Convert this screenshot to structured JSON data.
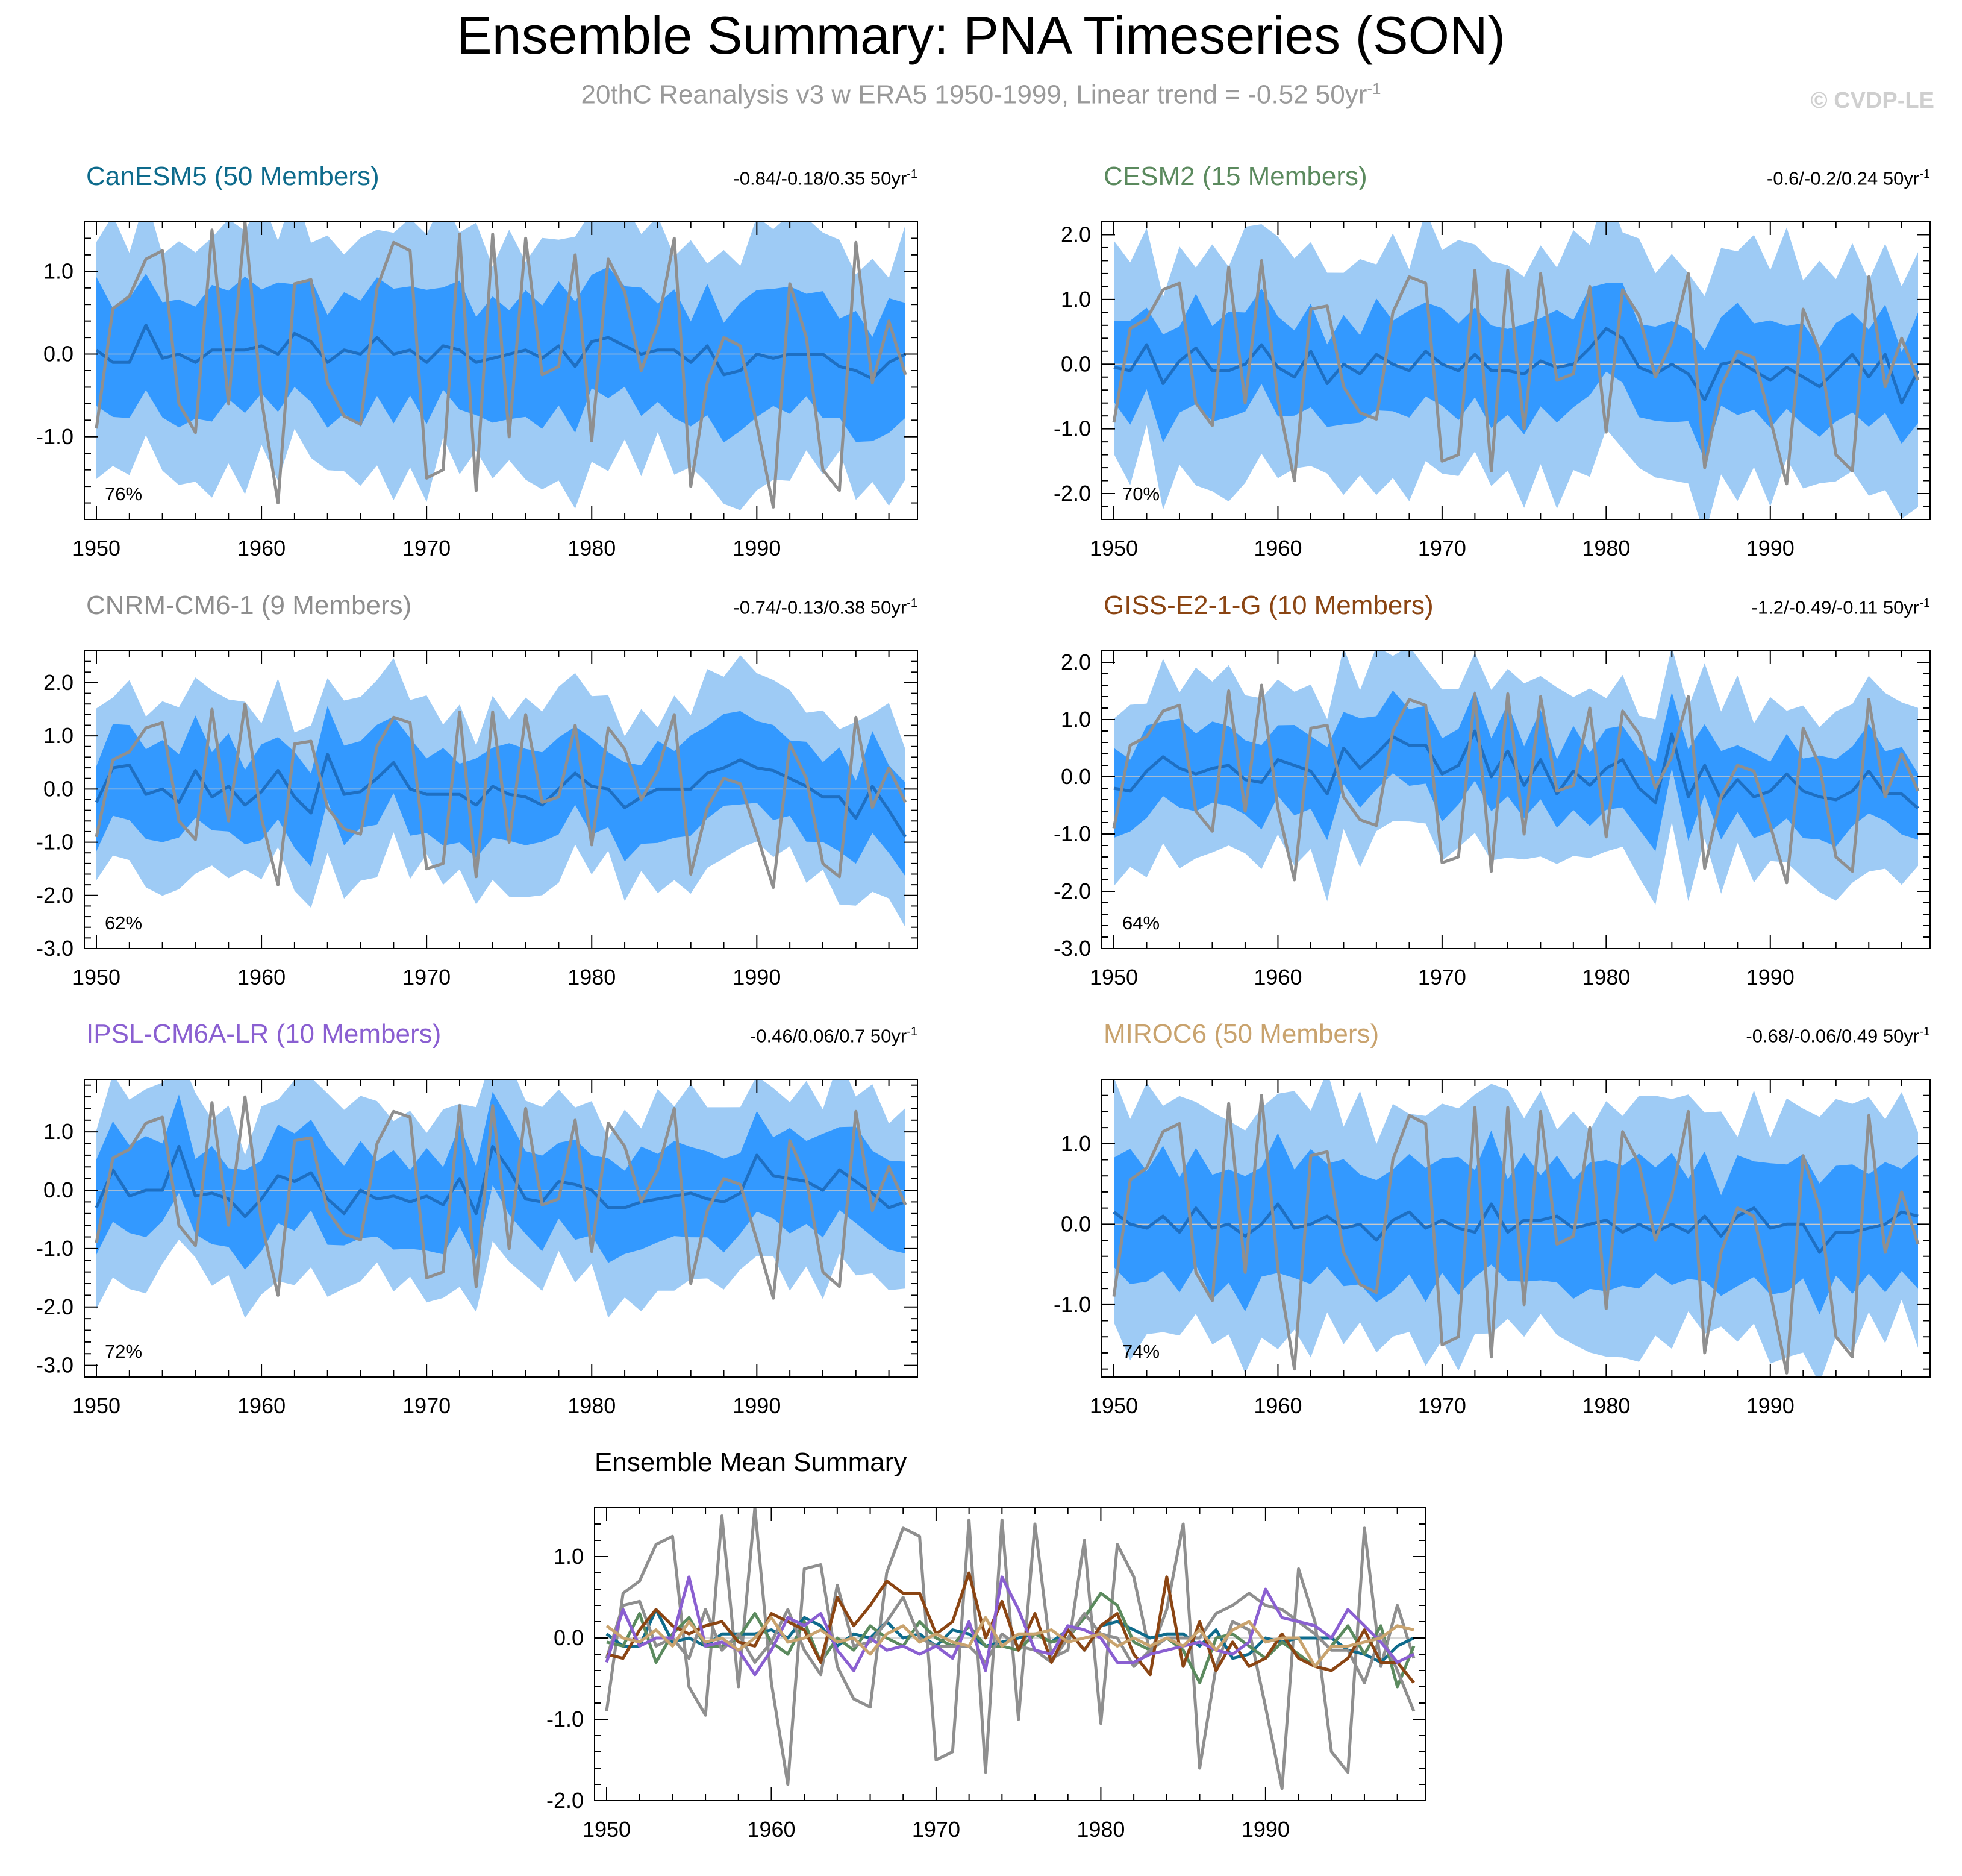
{
  "header": {
    "title": "Ensemble Summary: PNA Timeseries (SON)",
    "subtitle": "20thC Reanalysis v3 w ERA5 1950-1999, Linear trend = -0.52 50yr",
    "subtitle_unit_exp": "-1",
    "credit": "© CVDP-LE"
  },
  "colors": {
    "outer_band": "#9ecbf5",
    "inner_band": "#3399ff",
    "ens_mean": "#1e6fc2",
    "observed": "#8f8f8f",
    "zero_line": "#c8c8c8"
  },
  "chart_data": {
    "type": "line",
    "x": [
      1950,
      1951,
      1952,
      1953,
      1954,
      1955,
      1956,
      1957,
      1958,
      1959,
      1960,
      1961,
      1962,
      1963,
      1964,
      1965,
      1966,
      1967,
      1968,
      1969,
      1970,
      1971,
      1972,
      1973,
      1974,
      1975,
      1976,
      1977,
      1978,
      1979,
      1980,
      1981,
      1982,
      1983,
      1984,
      1985,
      1986,
      1987,
      1988,
      1989,
      1990,
      1991,
      1992,
      1993,
      1994,
      1995,
      1996,
      1997,
      1998,
      1999
    ],
    "xticks": [
      "1950",
      "1960",
      "1970",
      "1980",
      "1990"
    ],
    "observed_name": "20thC Reanalysis v3 w ERA5",
    "observed": [
      -0.9,
      0.55,
      0.7,
      1.15,
      1.25,
      -0.6,
      -0.95,
      1.5,
      -0.6,
      1.6,
      -0.55,
      -1.8,
      0.85,
      0.9,
      -0.35,
      -0.75,
      -0.85,
      0.8,
      1.35,
      1.25,
      -1.5,
      -1.4,
      1.45,
      -1.65,
      1.45,
      -1.0,
      1.4,
      -0.25,
      -0.15,
      1.2,
      -1.05,
      1.15,
      0.75,
      -0.2,
      0.35,
      1.4,
      -1.6,
      -0.35,
      0.2,
      0.1,
      -0.85,
      -1.85,
      0.85,
      0.2,
      -1.4,
      -1.65,
      1.35,
      -0.35,
      0.4,
      -0.25
    ],
    "panels": [
      {
        "name": "CanESM5 (50 Members)",
        "color": "#0e6b8c",
        "trend": "-0.84/-0.18/0.35 50yr",
        "trend_exp": "-1",
        "percent": "76%",
        "ylim": [
          -2.0,
          1.6
        ],
        "yticks": [
          "1.0",
          "0.0",
          "-1.0"
        ],
        "ytick_values": [
          1.0,
          0.0,
          -1.0
        ],
        "mean": [
          0.05,
          -0.1,
          -0.1,
          0.35,
          -0.05,
          0.0,
          -0.1,
          0.05,
          0.05,
          0.05,
          0.1,
          0.0,
          0.25,
          0.15,
          -0.1,
          0.05,
          0.0,
          0.2,
          0.0,
          0.05,
          -0.1,
          0.1,
          0.05,
          -0.1,
          -0.05,
          0.0,
          0.05,
          -0.05,
          0.1,
          -0.15,
          0.15,
          0.2,
          0.1,
          0.0,
          0.05,
          0.05,
          -0.1,
          0.1,
          -0.25,
          -0.2,
          0.0,
          -0.05,
          0.0,
          0.0,
          0.0,
          -0.15,
          -0.2,
          -0.3,
          -0.1,
          0.0
        ],
        "inner_width": 0.72,
        "outer_width": 1.45
      },
      {
        "name": "CESM2 (15 Members)",
        "color": "#5b8a5e",
        "trend": "-0.6/-0.2/0.24 50yr",
        "trend_exp": "-1",
        "percent": "70%",
        "ylim": [
          -2.4,
          2.2
        ],
        "yticks": [
          "2.0",
          "1.0",
          "0.0",
          "-1.0",
          "-2.0"
        ],
        "ytick_values": [
          2.0,
          1.0,
          0.0,
          -1.0,
          -2.0
        ],
        "mean": [
          -0.05,
          -0.1,
          0.3,
          -0.3,
          0.05,
          0.25,
          -0.1,
          -0.1,
          0.0,
          0.3,
          -0.05,
          -0.2,
          0.2,
          -0.3,
          0.0,
          -0.15,
          0.15,
          0.0,
          -0.1,
          0.2,
          0.0,
          -0.1,
          0.15,
          -0.1,
          -0.1,
          -0.15,
          0.05,
          -0.05,
          0.0,
          0.25,
          0.55,
          0.4,
          -0.05,
          -0.15,
          0.0,
          -0.15,
          -0.55,
          0.0,
          0.05,
          -0.1,
          -0.25,
          -0.05,
          -0.2,
          -0.35,
          -0.1,
          0.15,
          -0.2,
          0.15,
          -0.6,
          -0.1
        ],
        "inner_width": 0.75,
        "outer_width": 1.75
      },
      {
        "name": "CNRM-CM6-1 (9 Members)",
        "color": "#8e8e8e",
        "trend": "-0.74/-0.13/0.38 50yr",
        "trend_exp": "-1",
        "percent": "62%",
        "ylim": [
          -3.0,
          2.6
        ],
        "yticks": [
          "2.0",
          "1.0",
          "0.0",
          "-1.0",
          "-2.0",
          "-3.0"
        ],
        "ytick_values": [
          2.0,
          1.0,
          0.0,
          -1.0,
          -2.0,
          -3.0
        ],
        "mean": [
          -0.25,
          0.4,
          0.45,
          -0.1,
          0.0,
          -0.25,
          0.35,
          -0.15,
          0.05,
          -0.3,
          -0.05,
          0.35,
          -0.15,
          -0.45,
          0.65,
          -0.1,
          -0.05,
          0.2,
          0.5,
          0.0,
          -0.1,
          -0.1,
          -0.1,
          -0.3,
          0.05,
          -0.1,
          -0.15,
          -0.3,
          0.0,
          0.3,
          0.05,
          0.0,
          -0.35,
          -0.15,
          0.0,
          0.0,
          0.0,
          0.3,
          0.4,
          0.55,
          0.4,
          0.35,
          0.2,
          0.05,
          -0.15,
          -0.15,
          -0.55,
          0.05,
          -0.4,
          -0.9
        ],
        "inner_width": 0.85,
        "outer_width": 1.65
      },
      {
        "name": "GISS-E2-1-G (10 Members)",
        "color": "#8b4513",
        "trend": "-1.2/-0.49/-0.11 50yr",
        "trend_exp": "-1",
        "percent": "64%",
        "ylim": [
          -3.0,
          2.2
        ],
        "yticks": [
          "2.0",
          "1.0",
          "0.0",
          "-1.0",
          "-2.0",
          "-3.0"
        ],
        "ytick_values": [
          2.0,
          1.0,
          0.0,
          -1.0,
          -2.0,
          -3.0
        ],
        "mean": [
          -0.2,
          -0.25,
          0.1,
          0.35,
          0.15,
          0.05,
          0.15,
          0.2,
          -0.05,
          -0.1,
          0.3,
          0.2,
          0.1,
          -0.3,
          0.5,
          0.15,
          0.4,
          0.7,
          0.55,
          0.55,
          0.05,
          0.2,
          0.8,
          0.0,
          0.45,
          -0.15,
          0.3,
          -0.3,
          0.1,
          -0.15,
          0.15,
          0.3,
          -0.2,
          -0.45,
          0.75,
          -0.35,
          0.2,
          -0.4,
          -0.05,
          -0.35,
          -0.25,
          0.05,
          -0.25,
          -0.35,
          -0.4,
          -0.25,
          0.1,
          -0.3,
          -0.3,
          -0.55
        ],
        "inner_width": 0.7,
        "outer_width": 1.5
      },
      {
        "name": "IPSL-CM6A-LR (10 Members)",
        "color": "#8a5fd1",
        "trend": "-0.46/0.06/0.7 50yr",
        "trend_exp": "-1",
        "percent": "72%",
        "ylim": [
          -3.2,
          1.9
        ],
        "yticks": [
          "1.0",
          "0.0",
          "-1.0",
          "-2.0",
          "-3.0"
        ],
        "ytick_values": [
          1.0,
          0.0,
          -1.0,
          -2.0,
          -3.0
        ],
        "mean": [
          -0.3,
          0.35,
          -0.1,
          0.0,
          0.0,
          0.75,
          -0.1,
          -0.05,
          -0.15,
          -0.45,
          -0.15,
          0.25,
          0.15,
          0.3,
          -0.15,
          -0.4,
          0.0,
          -0.15,
          -0.1,
          -0.2,
          -0.1,
          -0.25,
          0.2,
          -0.4,
          0.75,
          0.35,
          -0.15,
          -0.2,
          0.15,
          0.1,
          0.0,
          -0.3,
          -0.3,
          -0.2,
          -0.15,
          -0.1,
          -0.05,
          -0.15,
          -0.2,
          -0.05,
          0.6,
          0.25,
          0.2,
          0.15,
          0.0,
          0.35,
          0.15,
          -0.05,
          -0.3,
          -0.2
        ],
        "inner_width": 0.78,
        "outer_width": 1.55
      },
      {
        "name": "MIROC6 (50 Members)",
        "color": "#c9a36e",
        "trend": "-0.68/-0.06/0.49 50yr",
        "trend_exp": "-1",
        "percent": "74%",
        "ylim": [
          -1.9,
          1.8
        ],
        "yticks": [
          "1.0",
          "0.0",
          "-1.0"
        ],
        "ytick_values": [
          1.0,
          0.0,
          -1.0
        ],
        "mean": [
          0.15,
          0.0,
          -0.05,
          0.1,
          -0.1,
          0.2,
          -0.05,
          0.0,
          -0.15,
          0.0,
          0.25,
          -0.05,
          0.0,
          0.1,
          -0.05,
          0.0,
          -0.2,
          0.05,
          0.15,
          -0.05,
          0.05,
          -0.05,
          -0.1,
          0.25,
          -0.1,
          0.05,
          0.05,
          0.1,
          -0.05,
          0.0,
          0.05,
          -0.1,
          0.0,
          -0.1,
          0.0,
          -0.1,
          0.1,
          -0.15,
          0.1,
          0.2,
          -0.05,
          0.0,
          0.0,
          -0.35,
          -0.1,
          -0.1,
          -0.05,
          0.0,
          0.15,
          0.1
        ],
        "inner_width": 0.75,
        "outer_width": 1.45
      }
    ],
    "summary": {
      "title": "Ensemble Mean Summary",
      "ylim": [
        -2.0,
        1.6
      ],
      "yticks": [
        "1.0",
        "0.0",
        "-1.0",
        "-2.0"
      ],
      "ytick_values": [
        1.0,
        0.0,
        -1.0,
        -2.0
      ]
    }
  }
}
